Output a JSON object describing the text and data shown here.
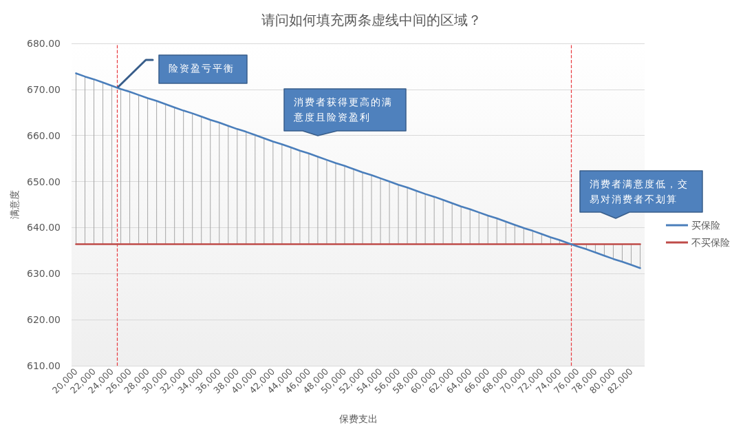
{
  "chart_data": {
    "type": "line",
    "title": "请问如何填充两条虚线中间的区域？",
    "xlabel": "保费支出",
    "ylabel": "满意度",
    "x": [
      20000,
      21000,
      22000,
      23000,
      24000,
      25000,
      26000,
      27000,
      28000,
      29000,
      30000,
      31000,
      32000,
      33000,
      34000,
      35000,
      36000,
      37000,
      38000,
      39000,
      40000,
      41000,
      42000,
      43000,
      44000,
      45000,
      46000,
      47000,
      48000,
      49000,
      50000,
      51000,
      52000,
      53000,
      54000,
      55000,
      56000,
      57000,
      58000,
      59000,
      60000,
      61000,
      62000,
      63000,
      64000,
      65000,
      66000,
      67000,
      68000,
      69000,
      70000,
      71000,
      72000,
      73000,
      74000,
      75000,
      76000,
      77000,
      78000,
      79000,
      80000,
      81000,
      82000,
      83000
    ],
    "series": [
      {
        "name": "买保险",
        "color": "#4a7ebb",
        "values": [
          673.5,
          672.8,
          672.2,
          671.5,
          670.8,
          670.1,
          669.5,
          668.8,
          668.1,
          667.5,
          666.8,
          666.1,
          665.4,
          664.8,
          664.1,
          663.4,
          662.8,
          662.1,
          661.4,
          660.8,
          660.1,
          659.4,
          658.7,
          658.1,
          657.4,
          656.7,
          656.1,
          655.4,
          654.7,
          654.0,
          653.4,
          652.7,
          652.0,
          651.4,
          650.7,
          650.0,
          649.3,
          648.7,
          648.0,
          647.3,
          646.7,
          646.0,
          645.3,
          644.6,
          644.0,
          643.3,
          642.6,
          642.0,
          641.3,
          640.6,
          639.9,
          639.3,
          638.6,
          637.9,
          637.3,
          636.6,
          635.9,
          635.3,
          634.6,
          633.9,
          633.2,
          632.6,
          631.9,
          631.2
        ],
        "errors": [
          [
            636.4,
            673.5
          ],
          [
            636.4,
            672.8
          ],
          [
            636.4,
            672.2
          ],
          [
            636.4,
            671.5
          ],
          [
            636.4,
            670.8
          ],
          [
            636.4,
            670.1
          ],
          [
            636.4,
            669.5
          ],
          [
            636.4,
            668.8
          ],
          [
            636.4,
            668.1
          ],
          [
            636.4,
            667.5
          ],
          [
            636.4,
            666.8
          ],
          [
            636.4,
            666.1
          ],
          [
            636.4,
            665.4
          ],
          [
            636.4,
            664.8
          ],
          [
            636.4,
            664.1
          ],
          [
            636.4,
            663.4
          ],
          [
            636.4,
            662.8
          ],
          [
            636.4,
            662.1
          ],
          [
            636.4,
            661.4
          ],
          [
            636.4,
            660.8
          ],
          [
            636.4,
            660.1
          ],
          [
            636.4,
            659.4
          ],
          [
            636.4,
            658.7
          ],
          [
            636.4,
            658.1
          ],
          [
            636.4,
            657.4
          ],
          [
            636.4,
            656.7
          ],
          [
            636.4,
            656.1
          ],
          [
            636.4,
            655.4
          ],
          [
            636.4,
            654.7
          ],
          [
            636.4,
            654.0
          ],
          [
            636.4,
            653.4
          ],
          [
            636.4,
            652.7
          ],
          [
            636.4,
            652.0
          ],
          [
            636.4,
            651.4
          ],
          [
            636.4,
            650.7
          ],
          [
            636.4,
            650.0
          ],
          [
            636.4,
            649.3
          ],
          [
            636.4,
            648.7
          ],
          [
            636.4,
            648.0
          ],
          [
            636.4,
            647.3
          ],
          [
            636.4,
            646.7
          ],
          [
            636.4,
            646.0
          ],
          [
            636.4,
            645.3
          ],
          [
            636.4,
            644.6
          ],
          [
            636.4,
            644.0
          ],
          [
            636.4,
            643.3
          ],
          [
            636.4,
            642.6
          ],
          [
            636.4,
            642.0
          ],
          [
            636.4,
            641.3
          ],
          [
            636.4,
            640.6
          ],
          [
            636.4,
            639.9
          ],
          [
            636.4,
            639.3
          ],
          [
            636.4,
            638.6
          ],
          [
            636.4,
            637.9
          ],
          [
            636.4,
            637.3
          ],
          null,
          null,
          [
            635.3,
            636.4
          ],
          [
            634.6,
            636.4
          ],
          [
            633.9,
            636.4
          ],
          [
            633.2,
            636.4
          ],
          [
            632.6,
            636.4
          ],
          [
            631.9,
            636.4
          ],
          [
            631.2,
            636.4
          ]
        ]
      },
      {
        "name": "不买保险",
        "color": "#be4b48",
        "values": [
          636.4,
          636.4,
          636.4,
          636.4,
          636.4,
          636.4,
          636.4,
          636.4,
          636.4,
          636.4,
          636.4,
          636.4,
          636.4,
          636.4,
          636.4,
          636.4,
          636.4,
          636.4,
          636.4,
          636.4,
          636.4,
          636.4,
          636.4,
          636.4,
          636.4,
          636.4,
          636.4,
          636.4,
          636.4,
          636.4,
          636.4,
          636.4,
          636.4,
          636.4,
          636.4,
          636.4,
          636.4,
          636.4,
          636.4,
          636.4,
          636.4,
          636.4,
          636.4,
          636.4,
          636.4,
          636.4,
          636.4,
          636.4,
          636.4,
          636.4,
          636.4,
          636.4,
          636.4,
          636.4,
          636.4,
          636.4,
          636.4,
          636.4,
          636.4,
          636.4,
          636.4,
          636.4,
          636.4,
          636.4
        ]
      }
    ],
    "xlim": [
      19500,
      83500
    ],
    "xticks": [
      {
        "value": 20000,
        "label": "20,000"
      },
      {
        "value": 22000,
        "label": "22,000"
      },
      {
        "value": 24000,
        "label": "24,000"
      },
      {
        "value": 26000,
        "label": "26,000"
      },
      {
        "value": 28000,
        "label": "28,000"
      },
      {
        "value": 30000,
        "label": "30,000"
      },
      {
        "value": 32000,
        "label": "32,000"
      },
      {
        "value": 34000,
        "label": "34,000"
      },
      {
        "value": 36000,
        "label": "36,000"
      },
      {
        "value": 38000,
        "label": "38,000"
      },
      {
        "value": 40000,
        "label": "40,000"
      },
      {
        "value": 42000,
        "label": "42,000"
      },
      {
        "value": 44000,
        "label": "44,000"
      },
      {
        "value": 46000,
        "label": "46,000"
      },
      {
        "value": 48000,
        "label": "48,000"
      },
      {
        "value": 50000,
        "label": "50,000"
      },
      {
        "value": 52000,
        "label": "52,000"
      },
      {
        "value": 54000,
        "label": "54,000"
      },
      {
        "value": 56000,
        "label": "56,000"
      },
      {
        "value": 58000,
        "label": "58,000"
      },
      {
        "value": 60000,
        "label": "60,000"
      },
      {
        "value": 62000,
        "label": "62,000"
      },
      {
        "value": 64000,
        "label": "64,000"
      },
      {
        "value": 66000,
        "label": "66,000"
      },
      {
        "value": 68000,
        "label": "68,000"
      },
      {
        "value": 70000,
        "label": "70,000"
      },
      {
        "value": 72000,
        "label": "72,000"
      },
      {
        "value": 74000,
        "label": "74,000"
      },
      {
        "value": 76000,
        "label": "76,000"
      },
      {
        "value": 78000,
        "label": "78,000"
      },
      {
        "value": 80000,
        "label": "80,000"
      },
      {
        "value": 82000,
        "label": "82,000"
      }
    ],
    "ylim": [
      610,
      680
    ],
    "yticks": [
      {
        "value": 610,
        "label": "610.00"
      },
      {
        "value": 620,
        "label": "620.00"
      },
      {
        "value": 630,
        "label": "630.00"
      },
      {
        "value": 640,
        "label": "640.00"
      },
      {
        "value": 650,
        "label": "650.00"
      },
      {
        "value": 660,
        "label": "660.00"
      },
      {
        "value": 670,
        "label": "670.00"
      },
      {
        "value": 680,
        "label": "680.00"
      }
    ],
    "ref_lines": [
      {
        "axis": "x",
        "value": 24600,
        "color": "#e8383d",
        "line_style": "dashed"
      },
      {
        "axis": "x",
        "value": 75300,
        "color": "#e8383d",
        "line_style": "dashed"
      }
    ],
    "annotations": [
      "险资盈亏平衡",
      "消费者获得更高的满意度且险资盈利",
      "消费者满意度低，交易对消费者不划算"
    ],
    "grid": "y",
    "legend": "right"
  }
}
